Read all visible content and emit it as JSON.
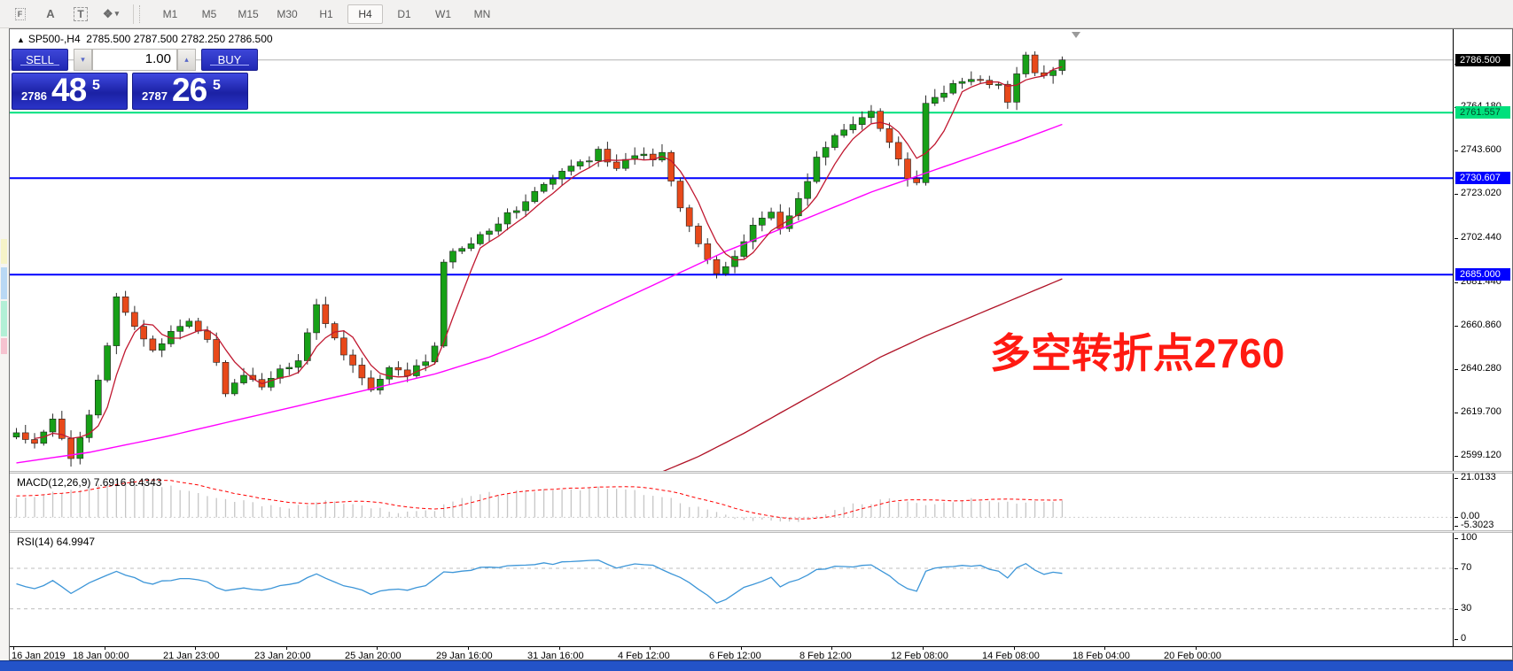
{
  "toolbar": {
    "icons": [
      {
        "name": "indicator-window-icon",
        "glyph": "F"
      },
      {
        "name": "text-annotation-icon",
        "glyph": "A"
      },
      {
        "name": "text-label-icon",
        "glyph": "T"
      },
      {
        "name": "draw-objects-icon",
        "glyph": "❖",
        "caret": "▾"
      }
    ],
    "timeframes": [
      "M1",
      "M5",
      "M15",
      "M30",
      "H1",
      "H4",
      "D1",
      "W1",
      "MN"
    ],
    "active_timeframe": "H4"
  },
  "chart_header": {
    "marker": "▲",
    "symbol": "SP500-,H4",
    "open": "2785.500",
    "high": "2787.500",
    "low": "2782.250",
    "close": "2786.500"
  },
  "quote_panel": {
    "sell_label": "SELL",
    "buy_label": "BUY",
    "volume": "1.00",
    "spin_down": "▾",
    "spin_up": "▴",
    "sell_price": {
      "prefix": "2786",
      "big": "48",
      "sup": "5"
    },
    "buy_price": {
      "prefix": "2787",
      "big": "26",
      "sup": "5"
    }
  },
  "annotation": {
    "text": "多空转折点2760",
    "color": "#ff1a12"
  },
  "macd_panel": {
    "label": "MACD(12,26,9) 7.6916 8.4343",
    "axis_ticks": [
      21.0133,
      0.0,
      -5.3023
    ],
    "axis_labels": [
      "21.0133",
      "0.00",
      "-5.3023"
    ]
  },
  "rsi_panel": {
    "label": "RSI(14) 64.9947",
    "axis_ticks": [
      100,
      70,
      30,
      0
    ],
    "axis_labels": [
      "100",
      "70",
      "30",
      "0"
    ]
  },
  "time_axis": [
    "16 Jan 2019",
    "18 Jan 00:00",
    "21 Jan 23:00",
    "23 Jan 20:00",
    "25 Jan 20:00",
    "29 Jan 16:00",
    "31 Jan 16:00",
    "4 Feb 12:00",
    "6 Feb 12:00",
    "8 Feb 12:00",
    "12 Feb 08:00",
    "14 Feb 08:00",
    "18 Feb 04:00",
    "20 Feb 00:00"
  ],
  "colors": {
    "up_candle": "#17a017",
    "down_candle": "#e8491a",
    "wick": "#2a2a2a",
    "fast_ma": "#c01830",
    "slow_ma": "#b01226",
    "medium_ma": "#ff00ff",
    "green_level": "#00e07c",
    "blue_level": "#0000ff",
    "current_price_line": "#b4b4b4",
    "current_badge_bg": "#000000",
    "macd_hist": "#c6c6c6",
    "macd_signal": "#ff0000",
    "rsi_line": "#3d96d8",
    "level_dash": "#bcbcbc"
  },
  "chart_data": {
    "type": "candlestick",
    "symbol": "SP500-",
    "timeframe": "H4",
    "ohlc_header": [
      2785.5,
      2787.5,
      2782.25,
      2786.5
    ],
    "current_price": 2786.5,
    "price_axis": {
      "min": 2592.2,
      "max": 2801.0,
      "ticks": [
        2784.76,
        2764.18,
        2743.6,
        2723.02,
        2702.44,
        2681.44,
        2660.86,
        2640.28,
        2619.7,
        2599.12
      ],
      "tick_labels": [
        "2784.760",
        "2764.180",
        "2743.600",
        "2723.020",
        "2702.440",
        "2681.440",
        "2660.860",
        "2640.280",
        "2619.700",
        "2599.120"
      ]
    },
    "levels": [
      {
        "value": 2761.557,
        "label": "2761.557",
        "color": "#00e07c"
      },
      {
        "value": 2730.607,
        "label": "2730.607",
        "color": "#0000ff"
      },
      {
        "value": 2685.0,
        "label": "2685.000",
        "color": "#0000ff"
      }
    ],
    "n_bars": 116,
    "bar_spacing_px": 10.26,
    "close_anchors": [
      [
        0,
        2610
      ],
      [
        2,
        2604
      ],
      [
        4,
        2616
      ],
      [
        6,
        2598
      ],
      [
        8,
        2620
      ],
      [
        10,
        2652
      ],
      [
        11,
        2673
      ],
      [
        13,
        2660
      ],
      [
        15,
        2650
      ],
      [
        17,
        2657
      ],
      [
        19,
        2662
      ],
      [
        21,
        2655
      ],
      [
        23,
        2630
      ],
      [
        25,
        2636
      ],
      [
        27,
        2633
      ],
      [
        29,
        2640
      ],
      [
        31,
        2645
      ],
      [
        33,
        2670
      ],
      [
        35,
        2655
      ],
      [
        37,
        2642
      ],
      [
        39,
        2630
      ],
      [
        41,
        2640
      ],
      [
        43,
        2638
      ],
      [
        45,
        2644
      ],
      [
        46,
        2650
      ],
      [
        47,
        2692
      ],
      [
        49,
        2698
      ],
      [
        51,
        2704
      ],
      [
        53,
        2710
      ],
      [
        55,
        2716
      ],
      [
        57,
        2724
      ],
      [
        59,
        2730
      ],
      [
        61,
        2736
      ],
      [
        63,
        2740
      ],
      [
        64,
        2745
      ],
      [
        66,
        2734
      ],
      [
        68,
        2742
      ],
      [
        70,
        2740
      ],
      [
        71,
        2743
      ],
      [
        73,
        2718
      ],
      [
        75,
        2700
      ],
      [
        77,
        2684
      ],
      [
        79,
        2694
      ],
      [
        81,
        2708
      ],
      [
        83,
        2716
      ],
      [
        84,
        2706
      ],
      [
        86,
        2720
      ],
      [
        88,
        2740
      ],
      [
        90,
        2750
      ],
      [
        92,
        2756
      ],
      [
        94,
        2763
      ],
      [
        96,
        2748
      ],
      [
        98,
        2731
      ],
      [
        99,
        2727
      ],
      [
        100,
        2765
      ],
      [
        102,
        2772
      ],
      [
        104,
        2776
      ],
      [
        106,
        2778
      ],
      [
        108,
        2774
      ],
      [
        109,
        2766
      ],
      [
        110,
        2780
      ],
      [
        111,
        2788
      ],
      [
        112,
        2780
      ],
      [
        113,
        2778
      ],
      [
        114,
        2782
      ],
      [
        115,
        2786.5
      ]
    ],
    "medium_ma_anchors": [
      [
        0,
        2596
      ],
      [
        8,
        2601
      ],
      [
        16,
        2608
      ],
      [
        24,
        2616
      ],
      [
        32,
        2624
      ],
      [
        40,
        2632
      ],
      [
        46,
        2638
      ],
      [
        52,
        2646
      ],
      [
        58,
        2656
      ],
      [
        64,
        2668
      ],
      [
        70,
        2680
      ],
      [
        74,
        2688
      ],
      [
        78,
        2696
      ],
      [
        82,
        2703
      ],
      [
        86,
        2710
      ],
      [
        90,
        2717
      ],
      [
        94,
        2724
      ],
      [
        98,
        2730
      ],
      [
        102,
        2736
      ],
      [
        106,
        2742
      ],
      [
        110,
        2748
      ],
      [
        115,
        2756
      ]
    ],
    "slow_ma_anchors": [
      [
        70,
        2590
      ],
      [
        75,
        2599
      ],
      [
        80,
        2610
      ],
      [
        85,
        2622
      ],
      [
        90,
        2634
      ],
      [
        95,
        2646
      ],
      [
        100,
        2656
      ],
      [
        105,
        2665
      ],
      [
        110,
        2674
      ],
      [
        115,
        2683
      ]
    ],
    "macd": {
      "value": 7.6916,
      "signal": 8.4343,
      "range": [
        -6.5,
        22
      ],
      "hist_anchors": [
        [
          0,
          9
        ],
        [
          4,
          12
        ],
        [
          8,
          15
        ],
        [
          11,
          19
        ],
        [
          14,
          18
        ],
        [
          18,
          14
        ],
        [
          22,
          10
        ],
        [
          26,
          7
        ],
        [
          30,
          5
        ],
        [
          34,
          8
        ],
        [
          38,
          5
        ],
        [
          42,
          3
        ],
        [
          46,
          4
        ],
        [
          48,
          8
        ],
        [
          52,
          12
        ],
        [
          56,
          13
        ],
        [
          60,
          14
        ],
        [
          64,
          15
        ],
        [
          68,
          13
        ],
        [
          72,
          9
        ],
        [
          76,
          3
        ],
        [
          80,
          -1
        ],
        [
          84,
          -3
        ],
        [
          86,
          -2
        ],
        [
          88,
          1
        ],
        [
          92,
          6
        ],
        [
          96,
          9
        ],
        [
          98,
          7
        ],
        [
          100,
          6
        ],
        [
          104,
          9
        ],
        [
          108,
          8
        ],
        [
          110,
          6
        ],
        [
          112,
          8
        ],
        [
          115,
          7.7
        ]
      ]
    },
    "rsi": {
      "value": 64.9947,
      "period": 14,
      "range": [
        0,
        100
      ],
      "overbought": 70,
      "oversold": 30,
      "anchors": [
        [
          0,
          55
        ],
        [
          2,
          50
        ],
        [
          4,
          58
        ],
        [
          6,
          46
        ],
        [
          8,
          56
        ],
        [
          11,
          68
        ],
        [
          13,
          60
        ],
        [
          15,
          55
        ],
        [
          17,
          58
        ],
        [
          19,
          60
        ],
        [
          21,
          56
        ],
        [
          23,
          47
        ],
        [
          25,
          50
        ],
        [
          27,
          48
        ],
        [
          29,
          52
        ],
        [
          31,
          55
        ],
        [
          33,
          65
        ],
        [
          35,
          57
        ],
        [
          37,
          50
        ],
        [
          39,
          45
        ],
        [
          41,
          50
        ],
        [
          43,
          49
        ],
        [
          45,
          52
        ],
        [
          47,
          66
        ],
        [
          49,
          68
        ],
        [
          51,
          70
        ],
        [
          53,
          71
        ],
        [
          55,
          72
        ],
        [
          57,
          74
        ],
        [
          59,
          75
        ],
        [
          61,
          76
        ],
        [
          63,
          77
        ],
        [
          64,
          78
        ],
        [
          66,
          70
        ],
        [
          68,
          74
        ],
        [
          70,
          72
        ],
        [
          73,
          60
        ],
        [
          75,
          50
        ],
        [
          77,
          36
        ],
        [
          78,
          38
        ],
        [
          79,
          45
        ],
        [
          81,
          55
        ],
        [
          83,
          60
        ],
        [
          84,
          52
        ],
        [
          86,
          60
        ],
        [
          88,
          68
        ],
        [
          90,
          71
        ],
        [
          92,
          72
        ],
        [
          94,
          74
        ],
        [
          96,
          62
        ],
        [
          98,
          50
        ],
        [
          99,
          48
        ],
        [
          100,
          68
        ],
        [
          102,
          71
        ],
        [
          104,
          72
        ],
        [
          106,
          72
        ],
        [
          108,
          68
        ],
        [
          109,
          60
        ],
        [
          110,
          70
        ],
        [
          111,
          74
        ],
        [
          112,
          68
        ],
        [
          113,
          64
        ],
        [
          114,
          66
        ],
        [
          115,
          65
        ]
      ]
    }
  }
}
